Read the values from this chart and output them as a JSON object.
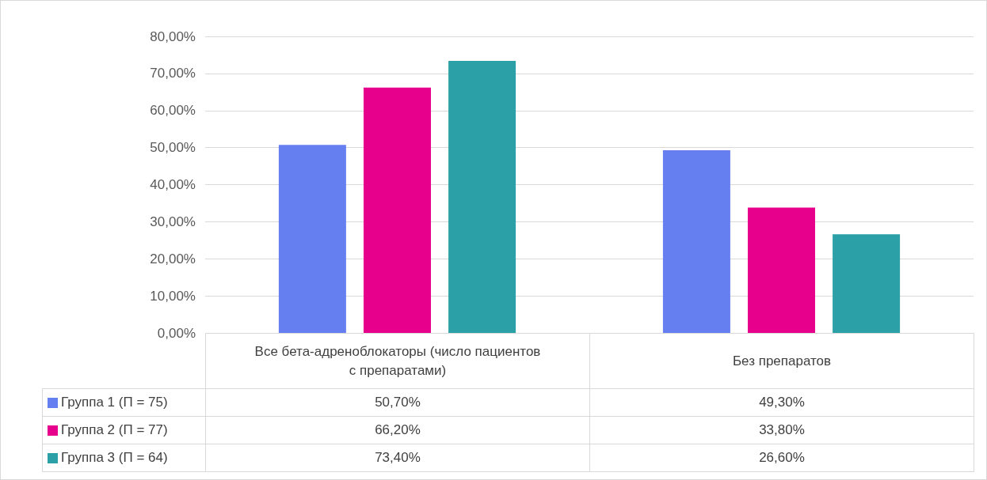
{
  "chart_data": {
    "type": "bar",
    "categories": [
      "Все бета-адреноблокаторы (число пациентов с препаратами)",
      "Без препаратов"
    ],
    "series": [
      {
        "name": "Группа 1 (П = 75)",
        "color": "#657ef0",
        "values": [
          50.7,
          49.3
        ],
        "value_labels": [
          "50,70%",
          "49,30%"
        ]
      },
      {
        "name": "Группа 2 (П = 77)",
        "color": "#e6008c",
        "values": [
          66.2,
          33.8
        ],
        "value_labels": [
          "66,20%",
          "33,80%"
        ]
      },
      {
        "name": "Группа 3 (П = 64)",
        "color": "#2ca0a7",
        "values": [
          73.4,
          26.6
        ],
        "value_labels": [
          "73,40%",
          "26,60%"
        ]
      }
    ],
    "ylim": [
      0,
      80
    ],
    "yticks": [
      {
        "value": 0,
        "label": "0,00%"
      },
      {
        "value": 10,
        "label": "10,00%"
      },
      {
        "value": 20,
        "label": "20,00%"
      },
      {
        "value": 30,
        "label": "30,00%"
      },
      {
        "value": 40,
        "label": "40,00%"
      },
      {
        "value": 50,
        "label": "50,00%"
      },
      {
        "value": 60,
        "label": "60,00%"
      },
      {
        "value": 70,
        "label": "70,00%"
      },
      {
        "value": 80,
        "label": "80,00%"
      }
    ],
    "grid": "y",
    "legend": "bottom left"
  }
}
